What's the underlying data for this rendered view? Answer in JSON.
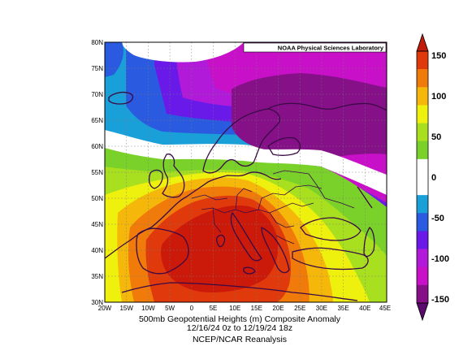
{
  "credit": "NOAA Physical Sciences Laboratory",
  "caption": {
    "line1": "500mb Geopotential Heights (m)    Composite Anomaly",
    "line2": "12/16/24 0z  to 12/19/24 18z",
    "line3": "NCEP/NCAR Reanalysis"
  },
  "lat_labels": [
    "80N",
    "75N",
    "70N",
    "65N",
    "60N",
    "55N",
    "50N",
    "45N",
    "40N",
    "35N",
    "30N"
  ],
  "lon_labels": [
    "20W",
    "15W",
    "10W",
    "5W",
    "0",
    "5E",
    "10E",
    "15E",
    "20E",
    "25E",
    "30E",
    "35E",
    "40E",
    "45E"
  ],
  "colorbar": {
    "labels": [
      "150",
      "100",
      "50",
      "0",
      "-50",
      "-100",
      "-150"
    ],
    "colors": [
      "#e0390c",
      "#f07a0a",
      "#f5b70a",
      "#eef00e",
      "#a8e020",
      "#7ad12a",
      "#ffffff",
      "#ffffff",
      "#1aa0d8",
      "#2a5ae0",
      "#6a1ae8",
      "#b01ad8",
      "#c810c8",
      "#861088"
    ]
  },
  "map": {
    "region": "Europe / North Atlantic",
    "variable": "500mb geopotential height anomaly",
    "pattern": "strong positive anomaly (ridge) centered over central Europe and Italy; strong negative anomaly over Scandinavia and northwest Russia"
  }
}
